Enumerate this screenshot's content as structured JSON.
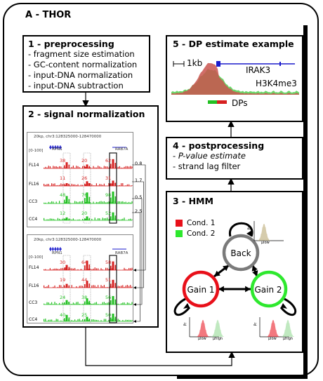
{
  "title": "A - THOR",
  "preprocessing": {
    "heading": "1 - preprocessing",
    "items": [
      "- fragment size estimation",
      "- GC-content normalization",
      "- input-DNA normalization",
      "- input-DNA subtraction"
    ]
  },
  "signal_norm": {
    "heading": "2 - signal normalization",
    "panel_top": {
      "locus": "20kp, chr3:128325000-128470000",
      "scale": "[0-100]",
      "genes": [
        "RPN1",
        "RAB7A"
      ],
      "tracks": [
        "FL14",
        "FL16",
        "CC3",
        "CC4"
      ],
      "values": [
        [
          "38",
          "20",
          "62"
        ],
        [
          "11",
          "26",
          "31"
        ],
        [
          "48",
          "76",
          "98"
        ],
        [
          "12",
          "20",
          "52"
        ]
      ]
    },
    "panel_bottom": {
      "locus": "20kp, chr3:128325000-128470000",
      "scale": "[0-100]",
      "genes": [
        "RPN1",
        "RAB7A"
      ],
      "tracks": [
        "FL14",
        "FL16",
        "CC3",
        "CC4"
      ],
      "values": [
        [
          "30",
          "64",
          "58"
        ],
        [
          "19",
          "44",
          "51"
        ],
        [
          "24",
          "38",
          "56"
        ],
        [
          "40",
          "25",
          "50"
        ]
      ]
    },
    "factors": [
      "0.8",
      "1.7",
      "0.5",
      "2.5"
    ]
  },
  "dp_estimate": {
    "heading": "5 - DP estimate example",
    "scale": "1kb",
    "gene": "IRAK3",
    "mark": "H3K4me3",
    "dps": "DPs"
  },
  "postprocessing": {
    "heading": "4 - postprocessing",
    "items": [
      "P-value estimate",
      "- strand lag filter"
    ],
    "pvalue_prefix": "- "
  },
  "hmm": {
    "heading": "3 - HMM",
    "legend": [
      {
        "label": "Cond. 1",
        "color": "#e8101a"
      },
      {
        "label": "Cond. 2",
        "color": "#2ee82e"
      }
    ],
    "states": [
      {
        "label": "Back",
        "color": "#7a7a7a"
      },
      {
        "label": "Gain 1",
        "color": "#e8101a"
      },
      {
        "label": "Gain 2",
        "color": "#2ee82e"
      }
    ],
    "axis_y": "Pr",
    "axis_low": "μlow",
    "axis_high": "μhigh"
  },
  "colors": {
    "red": "#d62020",
    "green": "#22c022",
    "grey": "#777777"
  }
}
